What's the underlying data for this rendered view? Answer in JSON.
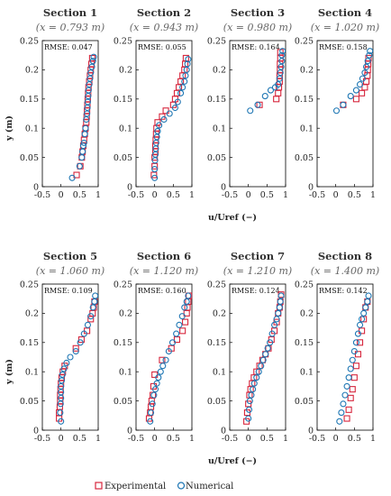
{
  "figure": {
    "xlabel": "u/Uref (−)",
    "ylabel": "y (m)",
    "legend": {
      "experimental": "Experimental",
      "numerical": "Numerical",
      "placement": "bottom-center"
    },
    "colors": {
      "experimental": "#d7263d",
      "numerical": "#1f77b4"
    }
  },
  "chart_data": [
    {
      "type": "scatter",
      "title": "Section 1",
      "subtitle": "(x = 0.793 m)",
      "rmse": "RMSE: 0.047",
      "xlim": [
        -0.5,
        1
      ],
      "ylim": [
        0,
        0.25
      ],
      "xticks": [
        "-0.5",
        "0",
        "0.5",
        "1"
      ],
      "yticks": [
        "0",
        "0.05",
        "0.1",
        "0.15",
        "0.2",
        "0.25"
      ],
      "series": [
        {
          "name": "Experimental",
          "marker": "square",
          "x": [
            0.42,
            0.52,
            0.56,
            0.58,
            0.6,
            0.62,
            0.64,
            0.66,
            0.68,
            0.69,
            0.7,
            0.71,
            0.72,
            0.73,
            0.74,
            0.76,
            0.78,
            0.8,
            0.82,
            0.84
          ],
          "y": [
            0.02,
            0.035,
            0.05,
            0.06,
            0.07,
            0.08,
            0.09,
            0.1,
            0.11,
            0.12,
            0.13,
            0.14,
            0.15,
            0.16,
            0.17,
            0.18,
            0.19,
            0.2,
            0.21,
            0.22
          ]
        },
        {
          "name": "Numerical",
          "marker": "circle",
          "x": [
            0.3,
            0.5,
            0.56,
            0.58,
            0.6,
            0.62,
            0.64,
            0.66,
            0.68,
            0.7,
            0.71,
            0.72,
            0.73,
            0.74,
            0.76,
            0.78,
            0.8,
            0.83,
            0.86,
            0.88
          ],
          "y": [
            0.015,
            0.035,
            0.05,
            0.06,
            0.07,
            0.075,
            0.09,
            0.1,
            0.115,
            0.125,
            0.135,
            0.145,
            0.155,
            0.165,
            0.175,
            0.185,
            0.195,
            0.205,
            0.215,
            0.222
          ]
        }
      ]
    },
    {
      "type": "scatter",
      "title": "Section 2",
      "subtitle": "(x = 0.943 m)",
      "rmse": "RMSE: 0.055",
      "xlim": [
        -0.5,
        1
      ],
      "ylim": [
        0,
        0.25
      ],
      "xticks": [
        "-0.5",
        "0",
        "0.5",
        "1"
      ],
      "yticks": [
        "0",
        "0.05",
        "0.1",
        "0.15",
        "0.2",
        "0.25"
      ],
      "series": [
        {
          "name": "Experimental",
          "marker": "square",
          "x": [
            -0.02,
            0.0,
            0.0,
            0.02,
            0.02,
            0.03,
            0.04,
            0.05,
            0.08,
            0.2,
            0.3,
            0.5,
            0.55,
            0.6,
            0.65,
            0.7,
            0.75,
            0.8,
            0.82,
            0.84
          ],
          "y": [
            0.02,
            0.035,
            0.05,
            0.06,
            0.07,
            0.08,
            0.09,
            0.1,
            0.11,
            0.12,
            0.13,
            0.14,
            0.15,
            0.16,
            0.17,
            0.18,
            0.19,
            0.2,
            0.21,
            0.22
          ]
        },
        {
          "name": "Numerical",
          "marker": "circle",
          "x": [
            0.0,
            0.0,
            0.01,
            0.02,
            0.03,
            0.04,
            0.06,
            0.08,
            0.12,
            0.25,
            0.4,
            0.55,
            0.62,
            0.7,
            0.75,
            0.8,
            0.83,
            0.86,
            0.88,
            0.9
          ],
          "y": [
            0.015,
            0.03,
            0.045,
            0.055,
            0.065,
            0.075,
            0.085,
            0.095,
            0.105,
            0.115,
            0.125,
            0.135,
            0.145,
            0.16,
            0.17,
            0.18,
            0.19,
            0.2,
            0.21,
            0.218
          ]
        }
      ]
    },
    {
      "type": "scatter",
      "title": "Section 3",
      "subtitle": "(x = 0.980 m)",
      "rmse": "RMSE: 0.164",
      "xlim": [
        -0.5,
        1
      ],
      "ylim": [
        0,
        0.25
      ],
      "xticks": [
        "-0.5",
        "0",
        "0.5",
        "1"
      ],
      "yticks": [
        "0",
        "0.05",
        "0.1",
        "0.15",
        "0.2",
        "0.25"
      ],
      "series": [
        {
          "name": "Experimental",
          "marker": "square",
          "x": [
            0.3,
            0.75,
            0.8,
            0.82,
            0.84,
            0.84,
            0.85,
            0.85,
            0.86,
            0.86
          ],
          "y": [
            0.14,
            0.15,
            0.16,
            0.17,
            0.18,
            0.19,
            0.2,
            0.21,
            0.22,
            0.23
          ]
        },
        {
          "name": "Numerical",
          "marker": "circle",
          "x": [
            0.05,
            0.25,
            0.45,
            0.6,
            0.72,
            0.8,
            0.84,
            0.86,
            0.88,
            0.9,
            0.9,
            0.92
          ],
          "y": [
            0.13,
            0.14,
            0.155,
            0.165,
            0.17,
            0.175,
            0.185,
            0.195,
            0.205,
            0.215,
            0.225,
            0.232
          ]
        }
      ]
    },
    {
      "type": "scatter",
      "title": "Section 4",
      "subtitle": "(x = 1.020 m)",
      "rmse": "RMSE: 0.158",
      "xlim": [
        -0.5,
        1
      ],
      "ylim": [
        0,
        0.25
      ],
      "xticks": [
        "-0.5",
        "0",
        "0.5",
        "1"
      ],
      "yticks": [
        "0",
        "0.05",
        "0.1",
        "0.15",
        "0.2",
        "0.25"
      ],
      "series": [
        {
          "name": "Experimental",
          "marker": "square",
          "x": [
            0.2,
            0.55,
            0.7,
            0.78,
            0.82,
            0.85,
            0.86,
            0.87,
            0.88
          ],
          "y": [
            0.14,
            0.15,
            0.16,
            0.17,
            0.18,
            0.19,
            0.2,
            0.21,
            0.22
          ]
        },
        {
          "name": "Numerical",
          "marker": "circle",
          "x": [
            0.02,
            0.2,
            0.4,
            0.55,
            0.65,
            0.72,
            0.78,
            0.82,
            0.86,
            0.9,
            0.92
          ],
          "y": [
            0.13,
            0.14,
            0.155,
            0.165,
            0.175,
            0.185,
            0.195,
            0.205,
            0.215,
            0.225,
            0.232
          ]
        }
      ]
    },
    {
      "type": "scatter",
      "title": "Section 5",
      "subtitle": "(x = 1.060 m)",
      "rmse": "RMSE: 0.109",
      "xlim": [
        -0.5,
        1
      ],
      "ylim": [
        0,
        0.25
      ],
      "xticks": [
        "-0.5",
        "0",
        "0.5",
        "1"
      ],
      "yticks": [
        "0",
        "0.05",
        "0.1",
        "0.15",
        "0.2",
        "0.25"
      ],
      "series": [
        {
          "name": "Experimental",
          "marker": "square",
          "x": [
            -0.05,
            -0.05,
            -0.03,
            -0.02,
            -0.02,
            -0.01,
            0.0,
            0.02,
            0.05,
            0.1,
            0.4,
            0.55,
            0.7,
            0.8,
            0.85,
            0.88,
            0.9
          ],
          "y": [
            0.02,
            0.03,
            0.04,
            0.05,
            0.06,
            0.07,
            0.08,
            0.09,
            0.1,
            0.11,
            0.14,
            0.155,
            0.17,
            0.19,
            0.2,
            0.21,
            0.22
          ]
        },
        {
          "name": "Numerical",
          "marker": "circle",
          "x": [
            0.0,
            -0.02,
            -0.01,
            0.0,
            0.0,
            0.0,
            0.02,
            0.04,
            0.08,
            0.15,
            0.25,
            0.4,
            0.52,
            0.62,
            0.72,
            0.8,
            0.86,
            0.9,
            0.92
          ],
          "y": [
            0.015,
            0.03,
            0.045,
            0.055,
            0.065,
            0.075,
            0.085,
            0.095,
            0.105,
            0.115,
            0.125,
            0.135,
            0.15,
            0.165,
            0.18,
            0.195,
            0.21,
            0.22,
            0.23
          ]
        }
      ]
    },
    {
      "type": "scatter",
      "title": "Section 6",
      "subtitle": "(x = 1.120 m)",
      "rmse": "RMSE: 0.160",
      "xlim": [
        -0.5,
        1
      ],
      "ylim": [
        0,
        0.25
      ],
      "xticks": [
        "-0.5",
        "0",
        "0.5",
        "1"
      ],
      "yticks": [
        "0",
        "0.05",
        "0.1",
        "0.15",
        "0.2",
        "0.25"
      ],
      "series": [
        {
          "name": "Experimental",
          "marker": "square",
          "x": [
            -0.15,
            -0.12,
            -0.1,
            -0.08,
            -0.05,
            -0.03,
            0.0,
            0.2,
            0.45,
            0.6,
            0.75,
            0.82,
            0.86,
            0.88,
            0.9,
            0.92
          ],
          "y": [
            0.02,
            0.03,
            0.04,
            0.05,
            0.06,
            0.075,
            0.095,
            0.12,
            0.14,
            0.155,
            0.17,
            0.185,
            0.2,
            0.21,
            0.22,
            0.23
          ]
        },
        {
          "name": "Numerical",
          "marker": "circle",
          "x": [
            -0.12,
            -0.1,
            -0.06,
            -0.02,
            0.02,
            0.06,
            0.1,
            0.16,
            0.22,
            0.3,
            0.38,
            0.48,
            0.58,
            0.66,
            0.74,
            0.8,
            0.86,
            0.9
          ],
          "y": [
            0.015,
            0.03,
            0.045,
            0.06,
            0.07,
            0.08,
            0.09,
            0.1,
            0.11,
            0.12,
            0.135,
            0.15,
            0.165,
            0.18,
            0.195,
            0.21,
            0.22,
            0.23
          ]
        }
      ]
    },
    {
      "type": "scatter",
      "title": "Section 7",
      "subtitle": "(x = 1.210 m)",
      "rmse": "RMSE: 0.124",
      "xlim": [
        -0.5,
        1
      ],
      "ylim": [
        0,
        0.25
      ],
      "xticks": [
        "-0.5",
        "0",
        "0.5",
        "1"
      ],
      "yticks": [
        "0",
        "0.05",
        "0.1",
        "0.15",
        "0.2",
        "0.25"
      ],
      "series": [
        {
          "name": "Experimental",
          "marker": "square",
          "x": [
            -0.05,
            -0.03,
            0.0,
            0.03,
            0.06,
            0.1,
            0.15,
            0.22,
            0.3,
            0.38,
            0.46,
            0.54,
            0.62,
            0.7,
            0.76,
            0.8,
            0.84,
            0.86,
            0.88
          ],
          "y": [
            0.015,
            0.03,
            0.045,
            0.06,
            0.07,
            0.08,
            0.09,
            0.1,
            0.11,
            0.12,
            0.13,
            0.14,
            0.155,
            0.17,
            0.185,
            0.2,
            0.21,
            0.22,
            0.232
          ]
        },
        {
          "name": "Numerical",
          "marker": "circle",
          "x": [
            0.0,
            0.02,
            0.04,
            0.08,
            0.12,
            0.16,
            0.22,
            0.28,
            0.34,
            0.4,
            0.46,
            0.52,
            0.58,
            0.64,
            0.7,
            0.76,
            0.8,
            0.84,
            0.86,
            0.88
          ],
          "y": [
            0.02,
            0.035,
            0.05,
            0.06,
            0.07,
            0.08,
            0.09,
            0.1,
            0.11,
            0.12,
            0.13,
            0.14,
            0.15,
            0.165,
            0.18,
            0.19,
            0.2,
            0.21,
            0.22,
            0.23
          ]
        }
      ]
    },
    {
      "type": "scatter",
      "title": "Section 8",
      "subtitle": "(x = 1.400 m)",
      "rmse": "RMSE: 0.142",
      "xlim": [
        -0.5,
        1
      ],
      "ylim": [
        0,
        0.25
      ],
      "xticks": [
        "-0.5",
        "0",
        "0.5",
        "1"
      ],
      "yticks": [
        "0",
        "0.05",
        "0.1",
        "0.15",
        "0.2",
        "0.25"
      ],
      "series": [
        {
          "name": "Experimental",
          "marker": "square",
          "x": [
            0.3,
            0.35,
            0.4,
            0.45,
            0.5,
            0.55,
            0.6,
            0.65,
            0.7,
            0.75,
            0.8,
            0.85
          ],
          "y": [
            0.02,
            0.035,
            0.055,
            0.07,
            0.09,
            0.11,
            0.13,
            0.15,
            0.17,
            0.19,
            0.21,
            0.22
          ]
        },
        {
          "name": "Numerical",
          "marker": "circle",
          "x": [
            0.1,
            0.15,
            0.2,
            0.25,
            0.3,
            0.35,
            0.4,
            0.45,
            0.5,
            0.55,
            0.6,
            0.65,
            0.7,
            0.75,
            0.8,
            0.85,
            0.88
          ],
          "y": [
            0.015,
            0.03,
            0.045,
            0.06,
            0.075,
            0.09,
            0.105,
            0.12,
            0.135,
            0.15,
            0.165,
            0.18,
            0.19,
            0.2,
            0.21,
            0.22,
            0.23
          ]
        }
      ]
    }
  ]
}
